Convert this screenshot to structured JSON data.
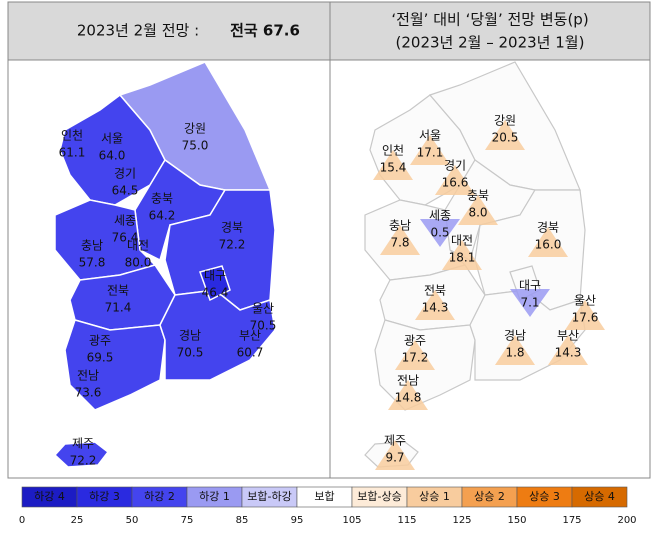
{
  "left_header": {
    "title": "2023년 2월 전망 :",
    "national": "전국 67.6"
  },
  "right_header": {
    "line1": "‘전월’ 대비 ‘당월’ 전망 변동(p)",
    "line2": "(2023년 2월 – 2023년 1월)"
  },
  "regions": [
    {
      "name": "인천",
      "outlook": "61.1",
      "change": "15.4",
      "direction": "up"
    },
    {
      "name": "서울",
      "outlook": "64.0",
      "change": "17.1",
      "direction": "up"
    },
    {
      "name": "경기",
      "outlook": "64.5",
      "change": "16.6",
      "direction": "up"
    },
    {
      "name": "강원",
      "outlook": "75.0",
      "change": "20.5",
      "direction": "up"
    },
    {
      "name": "충북",
      "outlook": "64.2",
      "change": "8.0",
      "direction": "up"
    },
    {
      "name": "세종",
      "outlook": "76.4",
      "change": "0.5",
      "direction": "down"
    },
    {
      "name": "대전",
      "outlook": "80.0",
      "change": "18.1",
      "direction": "up"
    },
    {
      "name": "충남",
      "outlook": "57.8",
      "change": "7.8",
      "direction": "up"
    },
    {
      "name": "경북",
      "outlook": "72.2",
      "change": "16.0",
      "direction": "up"
    },
    {
      "name": "대구",
      "outlook": "46.4",
      "change": "7.1",
      "direction": "down"
    },
    {
      "name": "전북",
      "outlook": "71.4",
      "change": "14.3",
      "direction": "up"
    },
    {
      "name": "울산",
      "outlook": "70.5",
      "change": "17.6",
      "direction": "up"
    },
    {
      "name": "부산",
      "outlook": "60.7",
      "change": "14.3",
      "direction": "up"
    },
    {
      "name": "경남",
      "outlook": "70.5",
      "change": "1.8",
      "direction": "up"
    },
    {
      "name": "광주",
      "outlook": "69.5",
      "change": "17.2",
      "direction": "up"
    },
    {
      "name": "전남",
      "outlook": "73.6",
      "change": "14.8",
      "direction": "up"
    },
    {
      "name": "제주",
      "outlook": "72.2",
      "change": "9.7",
      "direction": "up"
    }
  ],
  "legend": {
    "items": [
      {
        "label": "하강 4",
        "color": "#1c1cc4",
        "text_color": "#ffffff"
      },
      {
        "label": "하강 3",
        "color": "#2a2ae0",
        "text_color": "#ffffff"
      },
      {
        "label": "하강 2",
        "color": "#4444ee",
        "text_color": "#ffffff"
      },
      {
        "label": "하강 1",
        "color": "#9a9af2",
        "text_color": "#ffffff"
      },
      {
        "label": "보합-하강",
        "color": "#c9c9f7",
        "text_color": "#222222"
      },
      {
        "label": "보합",
        "color": "#ffffff",
        "text_color": "#222222"
      },
      {
        "label": "보합-상승",
        "color": "#fdebd8",
        "text_color": "#222222"
      },
      {
        "label": "상승 1",
        "color": "#f8cc9e",
        "text_color": "#222222"
      },
      {
        "label": "상승 2",
        "color": "#f4a050",
        "text_color": "#222222"
      },
      {
        "label": "상승 3",
        "color": "#ee7c12",
        "text_color": "#222222"
      },
      {
        "label": "상승 4",
        "color": "#d66a00",
        "text_color": "#222222"
      }
    ],
    "ticks": [
      "0",
      "25",
      "50",
      "75",
      "85",
      "95",
      "105",
      "115",
      "125",
      "150",
      "175",
      "200"
    ]
  }
}
